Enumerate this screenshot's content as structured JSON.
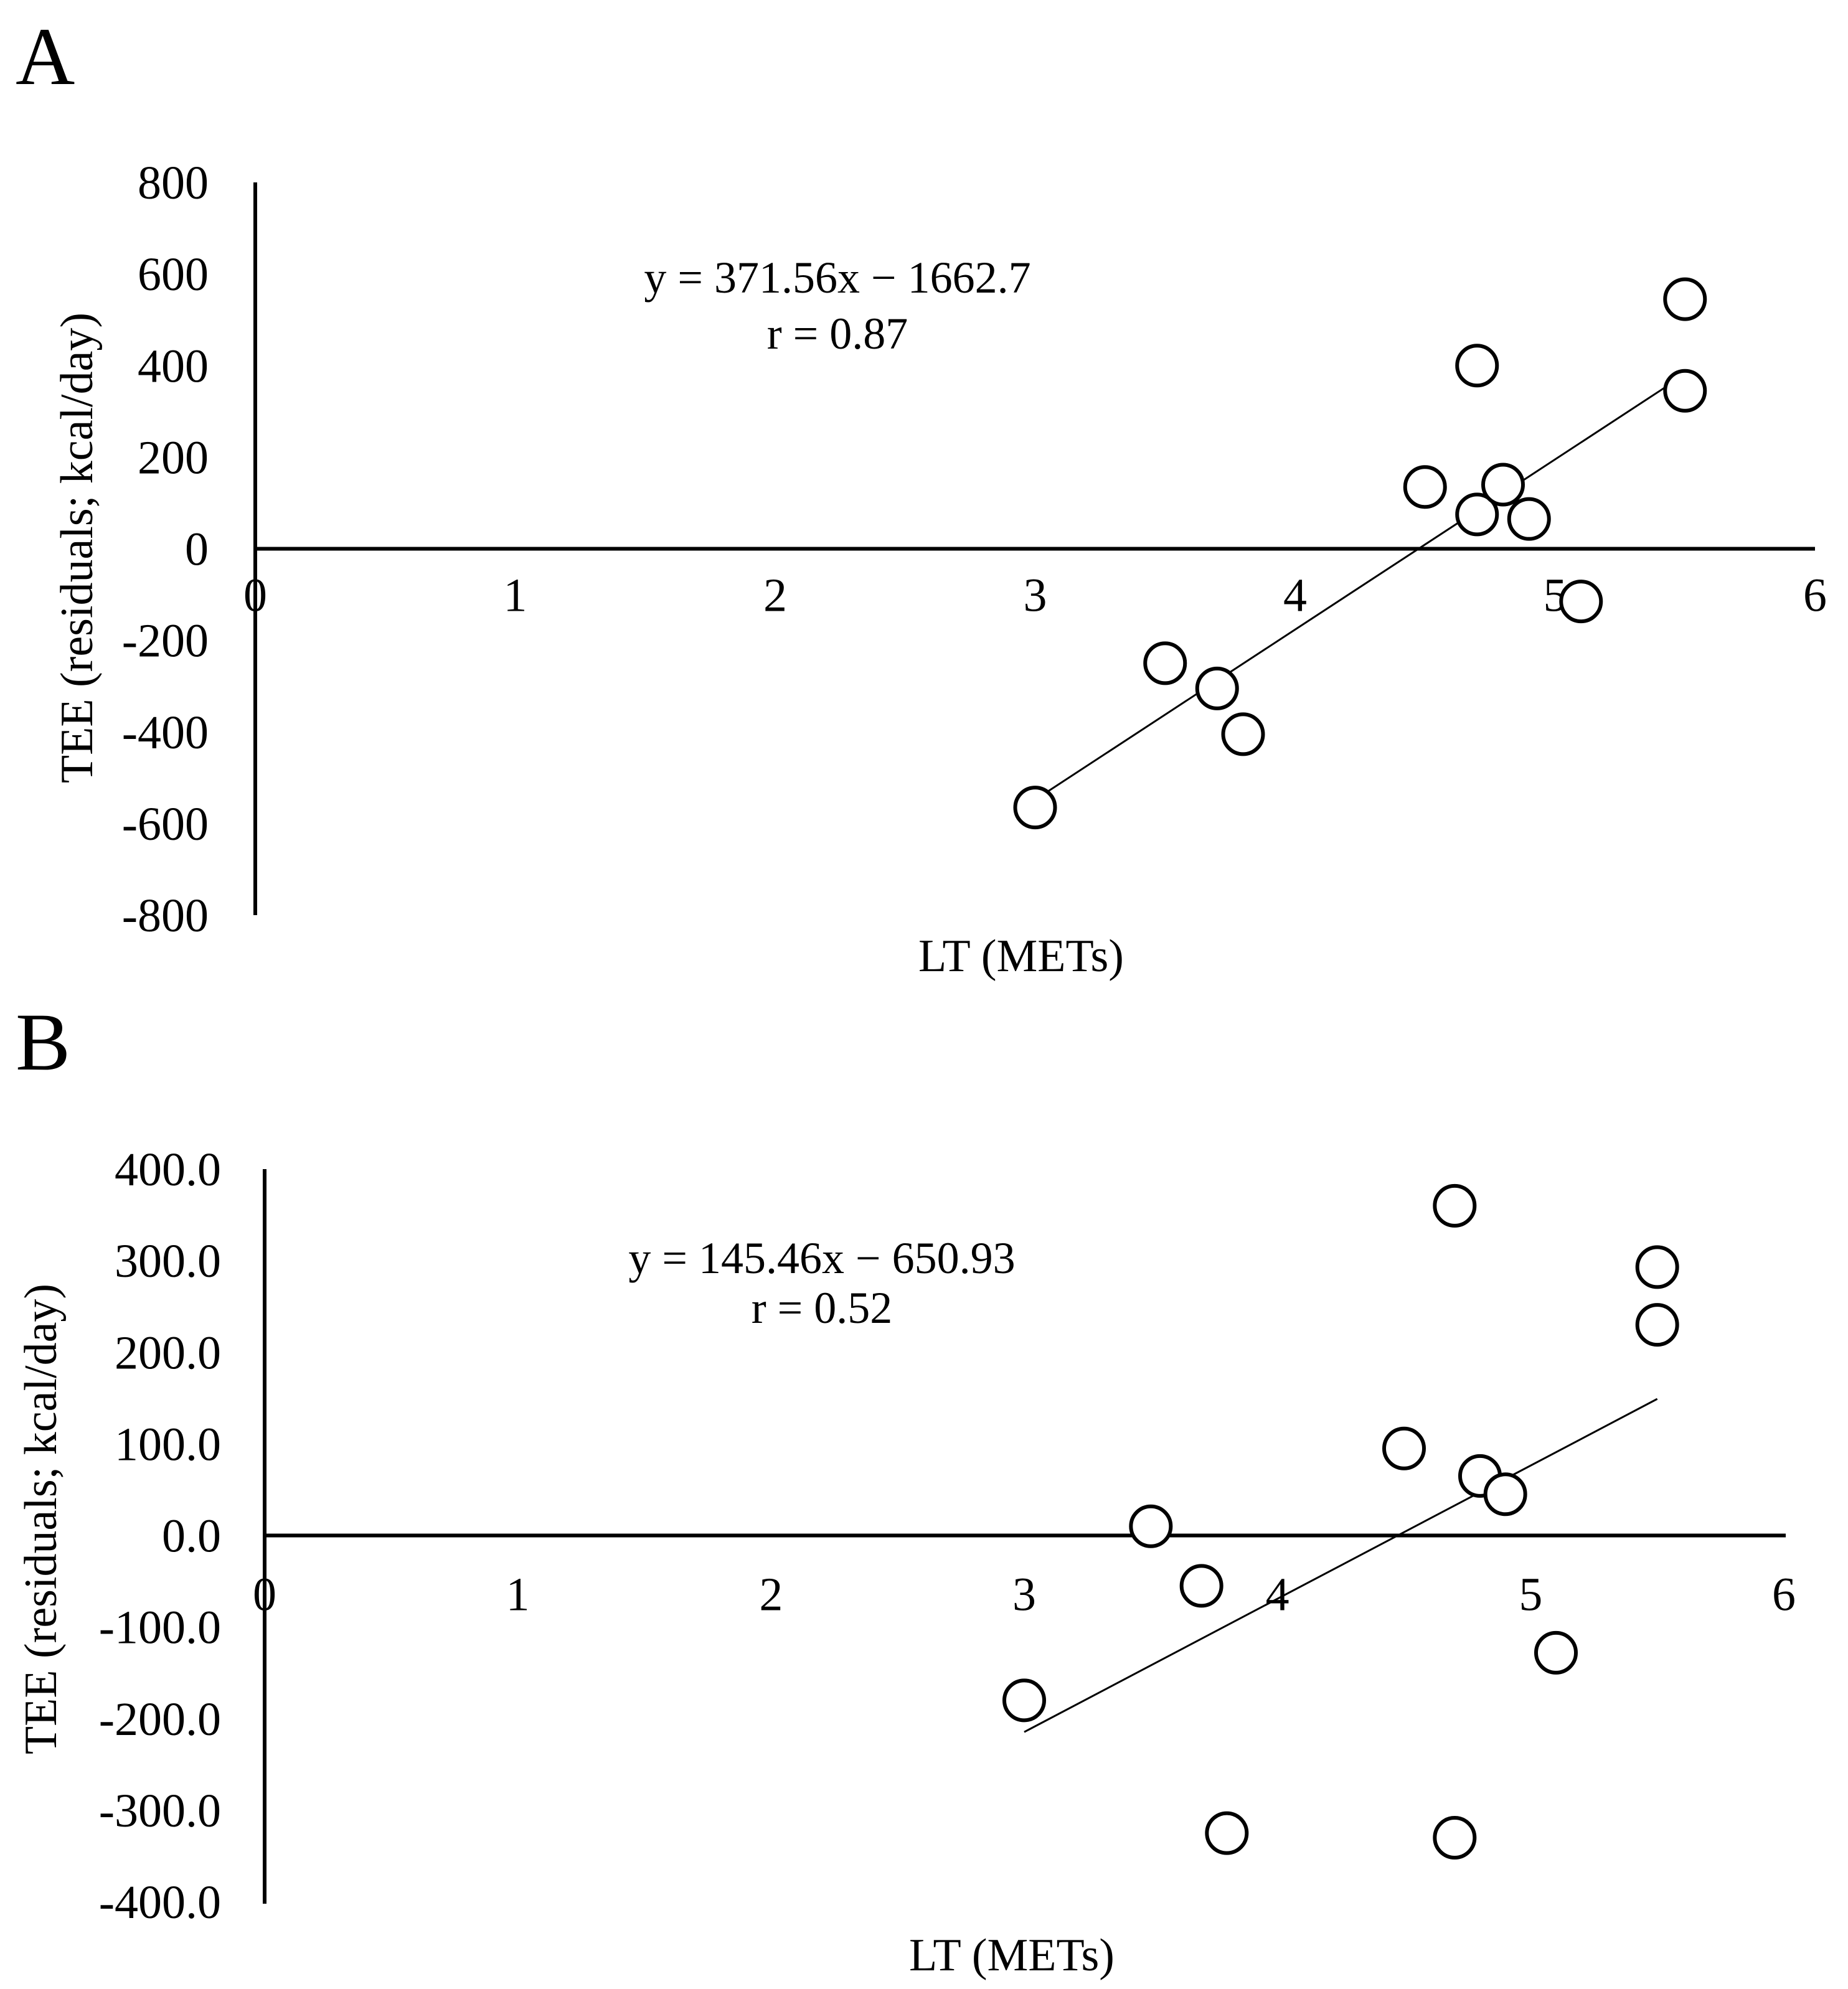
{
  "chart_data": [
    {
      "panel": "A",
      "type": "scatter",
      "xlabel": "LT (METs)",
      "ylabel": "TEE (residuals; kcal/day)",
      "xlim": [
        0,
        6
      ],
      "ylim": [
        -800,
        800
      ],
      "x_ticks": [
        0,
        1,
        2,
        3,
        4,
        5,
        6
      ],
      "y_ticks": [
        800,
        600,
        400,
        200,
        0,
        -200,
        -400,
        -600,
        -800
      ],
      "y_tick_labels": [
        "800",
        "600",
        "400",
        "200",
        "0",
        "-200",
        "-400",
        "-600",
        "-800"
      ],
      "points": [
        {
          "x": 3.0,
          "y": -565
        },
        {
          "x": 3.5,
          "y": -250
        },
        {
          "x": 3.7,
          "y": -305
        },
        {
          "x": 3.8,
          "y": -405
        },
        {
          "x": 4.5,
          "y": 135
        },
        {
          "x": 4.7,
          "y": 400
        },
        {
          "x": 4.7,
          "y": 75
        },
        {
          "x": 4.8,
          "y": 140
        },
        {
          "x": 4.9,
          "y": 65
        },
        {
          "x": 5.1,
          "y": -115
        },
        {
          "x": 5.5,
          "y": 545
        },
        {
          "x": 5.5,
          "y": 345
        }
      ],
      "trendline": {
        "slope": 371.56,
        "intercept": -1662.7,
        "x_range": [
          3.0,
          5.5
        ]
      },
      "equation": "y = 371.56x − 1662.7",
      "r_text": "r = 0.87"
    },
    {
      "panel": "B",
      "type": "scatter",
      "xlabel": "LT (METs)",
      "ylabel": "TEE (residuals; kcal/day)",
      "xlim": [
        0,
        6
      ],
      "ylim": [
        -400,
        400
      ],
      "x_ticks": [
        0,
        1,
        2,
        3,
        4,
        5,
        6
      ],
      "y_ticks": [
        400,
        300,
        200,
        100,
        0,
        -100,
        -200,
        -300,
        -400
      ],
      "y_tick_labels": [
        "400.0",
        "300.0",
        "200.0",
        "100.0",
        "0.0",
        "-100.0",
        "-200.0",
        "-300.0",
        "-400.0"
      ],
      "points": [
        {
          "x": 3.0,
          "y": -180
        },
        {
          "x": 3.5,
          "y": 10
        },
        {
          "x": 3.7,
          "y": -55
        },
        {
          "x": 3.8,
          "y": -325
        },
        {
          "x": 4.5,
          "y": 95
        },
        {
          "x": 4.7,
          "y": 360
        },
        {
          "x": 4.7,
          "y": -330
        },
        {
          "x": 4.8,
          "y": 65
        },
        {
          "x": 4.9,
          "y": 45
        },
        {
          "x": 5.1,
          "y": -128
        },
        {
          "x": 5.5,
          "y": 293
        },
        {
          "x": 5.5,
          "y": 230
        }
      ],
      "trendline": {
        "slope": 145.46,
        "intercept": -650.93,
        "x_range": [
          3.0,
          5.5
        ]
      },
      "equation": "y = 145.46x − 650.93",
      "r_text": "r = 0.52"
    }
  ]
}
